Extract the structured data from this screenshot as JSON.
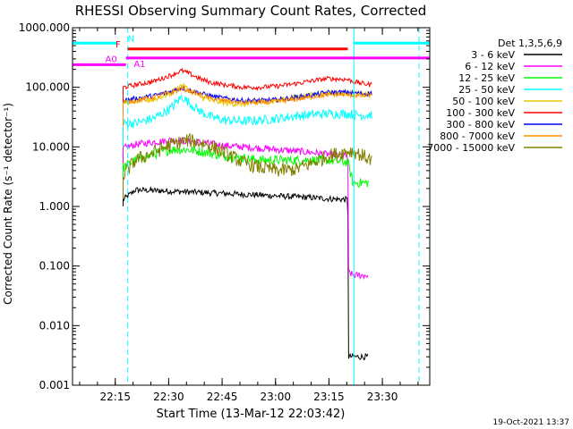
{
  "chart_data": {
    "type": "line",
    "title": "RHESSI Observing Summary Count Rates, Corrected",
    "xlabel": "Start Time (13-Mar-12 22:03:42)",
    "ylabel": "Corrected Count Rate (s⁻¹ detector⁻¹)",
    "yscale": "log",
    "ylim": [
      0.001,
      1000
    ],
    "xlim_minutes": [
      -0.7,
      99.6
    ],
    "x_units": "minutes after 22:03:42",
    "x_ticks": [
      {
        "label": "22:15",
        "minute": 11.3
      },
      {
        "label": "22:30",
        "minute": 26.3
      },
      {
        "label": "22:45",
        "minute": 41.3
      },
      {
        "label": "23:00",
        "minute": 56.3
      },
      {
        "label": "23:15",
        "minute": 71.3
      },
      {
        "label": "23:30",
        "minute": 86.3
      }
    ],
    "y_ticks": [
      {
        "label": "1000.000",
        "value": 1000
      },
      {
        "label": "100.000",
        "value": 100
      },
      {
        "label": "10.000",
        "value": 10
      },
      {
        "label": "1.000",
        "value": 1
      },
      {
        "label": "0.100",
        "value": 0.1
      },
      {
        "label": "0.010",
        "value": 0.01
      },
      {
        "label": "0.001",
        "value": 0.001
      }
    ],
    "legend_title": "Det 1,3,5,6,9",
    "series": [
      {
        "name": "3 - 6 keV",
        "color": "#000000",
        "x": [
          13.5,
          17,
          22,
          27,
          32,
          37,
          42,
          47,
          52,
          57,
          62,
          67,
          71,
          76.6,
          76.8,
          78,
          81,
          82.2
        ],
        "y": [
          1.3,
          1.9,
          1.85,
          1.8,
          1.75,
          1.7,
          1.65,
          1.6,
          1.55,
          1.5,
          1.45,
          1.4,
          1.35,
          1.3,
          0.003,
          0.003,
          0.003,
          0.003
        ]
      },
      {
        "name": "6 - 12 keV",
        "color": "#ff00ff",
        "x": [
          13.5,
          17,
          22,
          27,
          32,
          37,
          42,
          47,
          52,
          57,
          62,
          67,
          71,
          76.6,
          76.8,
          78,
          81,
          82.2
        ],
        "y": [
          9.5,
          11,
          12,
          13,
          12.5,
          11.5,
          10.5,
          10,
          9.5,
          9,
          8.5,
          8,
          7.5,
          7,
          0.08,
          0.07,
          0.07,
          0.07
        ]
      },
      {
        "name": "12 - 25 keV",
        "color": "#00ff00",
        "x": [
          13.5,
          17,
          22,
          27,
          32,
          37,
          42,
          47,
          52,
          57,
          62,
          67,
          71,
          76.6,
          78,
          81,
          82.5
        ],
        "y": [
          4.5,
          6,
          7.5,
          9,
          9,
          8,
          7,
          6.5,
          6,
          6,
          6,
          6,
          6,
          5.5,
          2.5,
          2.5,
          2.5
        ]
      },
      {
        "name": "25 - 50 keV",
        "color": "#00ffff",
        "x": [
          13.5,
          17,
          22,
          27,
          30,
          32,
          35,
          38,
          42,
          47,
          52,
          57,
          62,
          67,
          71,
          76.6,
          78,
          81,
          83.3
        ],
        "y": [
          25,
          25,
          30,
          45,
          70,
          55,
          40,
          32,
          28,
          27,
          28,
          30,
          33,
          35,
          36,
          36,
          35,
          34,
          35
        ]
      },
      {
        "name": "50 - 100 keV",
        "color": "#e8c800",
        "x": [
          13.5,
          17,
          22,
          27,
          30,
          32,
          35,
          38,
          42,
          47,
          52,
          57,
          62,
          67,
          71,
          76.6,
          78,
          81,
          83.3
        ],
        "y": [
          55,
          58,
          62,
          80,
          110,
          90,
          70,
          60,
          55,
          52,
          55,
          60,
          68,
          75,
          80,
          80,
          78,
          76,
          78
        ]
      },
      {
        "name": "100 - 300 keV",
        "color": "#ff0000",
        "x": [
          13.5,
          17,
          22,
          27,
          30,
          32,
          35,
          38,
          42,
          47,
          52,
          57,
          62,
          67,
          71,
          76.6,
          78,
          81,
          83.3
        ],
        "y": [
          100,
          110,
          125,
          160,
          190,
          170,
          140,
          120,
          110,
          100,
          100,
          105,
          115,
          130,
          140,
          135,
          125,
          115,
          110
        ]
      },
      {
        "name": "300 - 800 keV",
        "color": "#0000ff",
        "x": [
          13.5,
          17,
          22,
          27,
          30,
          32,
          35,
          38,
          42,
          47,
          52,
          57,
          62,
          67,
          71,
          76.6,
          78,
          81,
          83.3
        ],
        "y": [
          60,
          65,
          72,
          85,
          98,
          90,
          80,
          72,
          65,
          60,
          60,
          62,
          68,
          75,
          82,
          82,
          80,
          78,
          80
        ]
      },
      {
        "name": "800 - 7000 keV",
        "color": "#ff8c00",
        "x": [
          13.5,
          17,
          22,
          27,
          30,
          32,
          35,
          38,
          42,
          47,
          52,
          57,
          62,
          67,
          71,
          76.6,
          78,
          81,
          83.3
        ],
        "y": [
          55,
          60,
          68,
          82,
          95,
          88,
          75,
          65,
          60,
          55,
          56,
          58,
          63,
          70,
          75,
          75,
          73,
          72,
          73
        ]
      },
      {
        "name": "7000 - 15000 keV",
        "color": "#808000",
        "x": [
          13.5,
          17,
          22,
          27,
          32,
          37,
          42,
          47,
          52,
          57,
          62,
          67,
          71,
          76.6,
          78,
          81,
          83.3
        ],
        "y": [
          3.3,
          6,
          8,
          11,
          13,
          11,
          8,
          5.5,
          4.5,
          4,
          4.2,
          5.5,
          7,
          8.5,
          8.5,
          7,
          6
        ]
      }
    ],
    "state_bars": [
      {
        "label": "N",
        "color": "#00ffff",
        "level": 550,
        "segments": [
          [
            -0.7,
            11.8
          ],
          [
            78.3,
            99.6
          ]
        ],
        "label_minute": 14.8
      },
      {
        "label": "F",
        "color": "#ff0000",
        "level": 440,
        "segments": [
          [
            14.8,
            76.6
          ]
        ],
        "label_minute": 12.8
      },
      {
        "label": "A0",
        "color": "#ff00ff",
        "level": 240,
        "segments": [
          [
            -0.7,
            14.3
          ]
        ],
        "label_minute": 11.8
      },
      {
        "label": "A1",
        "color": "#ff00ff",
        "level": 310,
        "segments": [
          [
            14.3,
            99.6
          ]
        ],
        "label_minute": 16.5
      }
    ],
    "vertical_markers": {
      "color": "#00ffff",
      "solid_minutes": [
        -0.7,
        78.3
      ],
      "dashed_minutes": [
        14.8,
        96.6
      ]
    },
    "footer_timestamp": "19-Oct-2021 13:37"
  }
}
